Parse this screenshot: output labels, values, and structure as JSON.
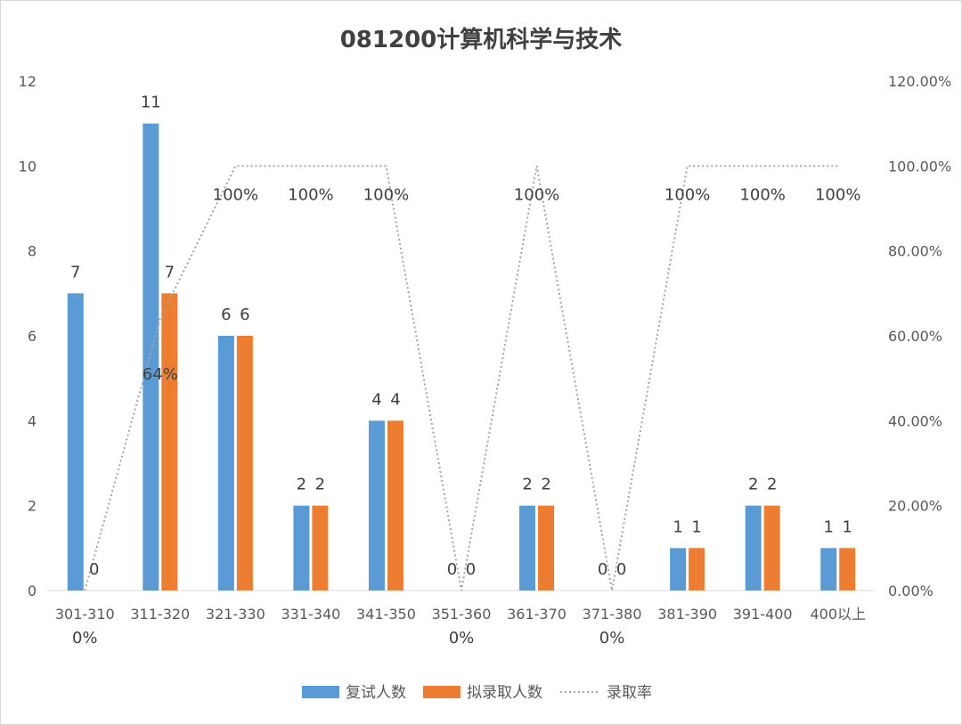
{
  "chart_data": {
    "type": "bar",
    "title": "081200计算机科学与技术",
    "categories": [
      "301-310",
      "311-320",
      "321-330",
      "331-340",
      "341-350",
      "351-360",
      "361-370",
      "371-380",
      "381-390",
      "391-400",
      "400以上"
    ],
    "series": [
      {
        "name": "复试人数",
        "type": "bar",
        "axis": "left",
        "color": "#5B9BD5",
        "values": [
          7,
          11,
          6,
          2,
          4,
          0,
          2,
          0,
          1,
          2,
          1
        ],
        "labels": [
          "7",
          "11",
          "6",
          "2",
          "4",
          "0",
          "2",
          "0",
          "1",
          "2",
          "1"
        ]
      },
      {
        "name": "拟录取人数",
        "type": "bar",
        "axis": "left",
        "color": "#ED7D31",
        "values": [
          0,
          7,
          6,
          2,
          4,
          0,
          2,
          0,
          1,
          2,
          1
        ],
        "labels": [
          "0",
          "7",
          "6",
          "2",
          "4",
          "0",
          "2",
          "0",
          "1",
          "2",
          "1"
        ]
      },
      {
        "name": "录取率",
        "type": "line",
        "style": "dotted",
        "axis": "right",
        "color": "#A5A5A5",
        "values": [
          0,
          0.64,
          1,
          1,
          1,
          0,
          1,
          0,
          1,
          1,
          1
        ],
        "labels": [
          "0%",
          "64%",
          "100%",
          "100%",
          "100%",
          "0%",
          "100%",
          "0%",
          "100%",
          "100%",
          "100%"
        ]
      }
    ],
    "y_left": {
      "min": 0,
      "max": 12,
      "ticks": [
        "0",
        "2",
        "4",
        "6",
        "8",
        "10",
        "12"
      ]
    },
    "y_right": {
      "min": 0,
      "max": 1.2,
      "ticks": [
        "0.00%",
        "20.00%",
        "40.00%",
        "60.00%",
        "80.00%",
        "100.00%",
        "120.00%"
      ]
    },
    "grid": false,
    "legend_position": "bottom"
  }
}
